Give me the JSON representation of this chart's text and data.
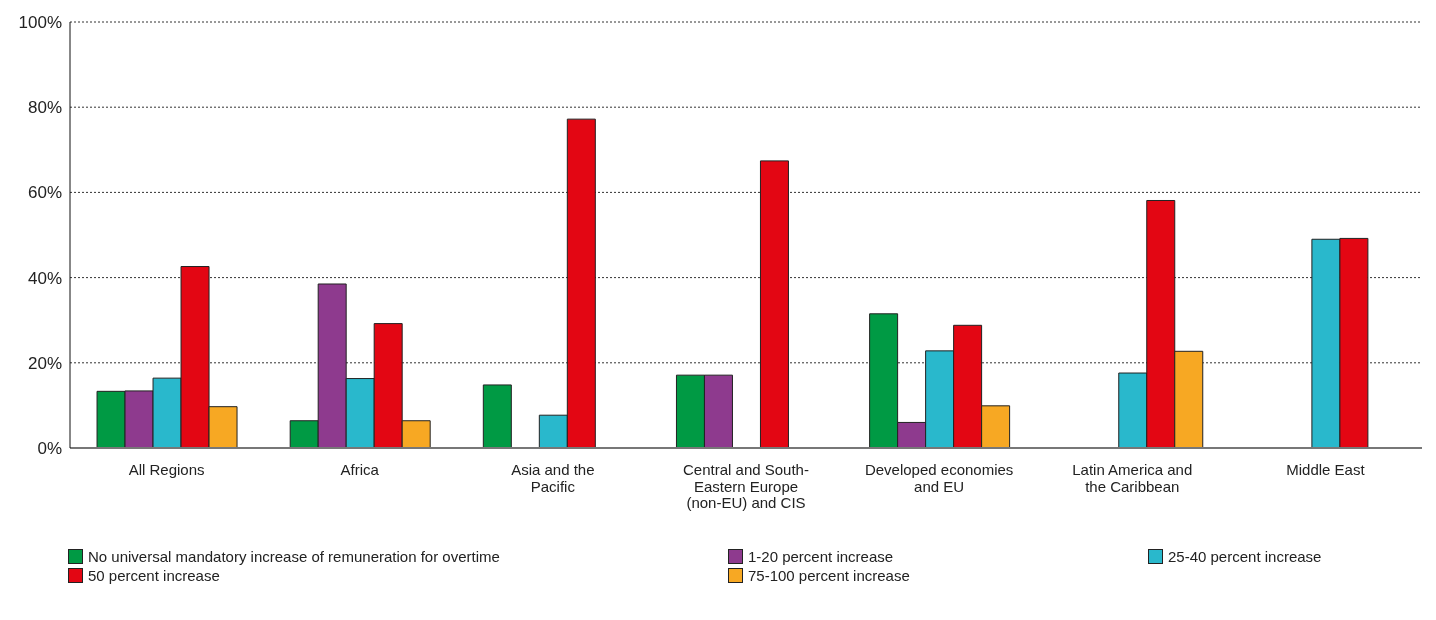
{
  "chart_data": {
    "type": "bar",
    "categories": [
      "All Regions",
      "Africa",
      "Asia and the Pacific",
      "Central and South-Eastern Europe (non-EU) and CIS",
      "Developed economies and EU",
      "Latin America and the Caribbean",
      "Middle East"
    ],
    "series": [
      {
        "name": "No universal mandatory increase of remuneration for overtime",
        "color": "#009a44",
        "values": [
          13.3,
          6.4,
          14.8,
          17.1,
          31.5,
          null,
          null
        ]
      },
      {
        "name": "1-20 percent increase",
        "color": "#8e3a8e",
        "values": [
          13.4,
          38.5,
          null,
          17.1,
          6,
          null,
          null
        ]
      },
      {
        "name": "25-40 percent increase",
        "color": "#29b8cc",
        "values": [
          16.4,
          16.3,
          7.7,
          null,
          22.8,
          17.6,
          49
        ]
      },
      {
        "name": "50 percent increase",
        "color": "#e30613",
        "values": [
          42.6,
          29.2,
          77.2,
          67.4,
          28.8,
          58.1,
          49.2
        ]
      },
      {
        "name": "75-100 percent increase",
        "color": "#f7a823",
        "values": [
          9.7,
          6.4,
          null,
          null,
          9.9,
          22.7,
          null
        ]
      }
    ],
    "ylim": [
      0,
      100
    ],
    "yticks": [
      {
        "value": 0,
        "label": "0%"
      },
      {
        "value": 20,
        "label": "20%"
      },
      {
        "value": 40,
        "label": "40%"
      },
      {
        "value": 60,
        "label": "60%"
      },
      {
        "value": 80,
        "label": "80%"
      },
      {
        "value": 100,
        "label": "100%"
      }
    ],
    "grid": "y",
    "legend": "bottom"
  }
}
